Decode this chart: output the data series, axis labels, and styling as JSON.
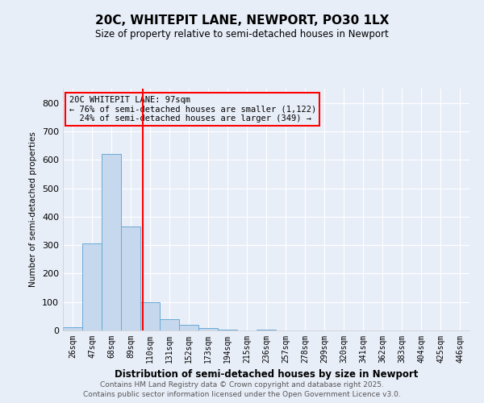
{
  "title": "20C, WHITEPIT LANE, NEWPORT, PO30 1LX",
  "subtitle": "Size of property relative to semi-detached houses in Newport",
  "xlabel": "Distribution of semi-detached houses by size in Newport",
  "ylabel": "Number of semi-detached properties",
  "categories": [
    "26sqm",
    "47sqm",
    "68sqm",
    "89sqm",
    "110sqm",
    "131sqm",
    "152sqm",
    "173sqm",
    "194sqm",
    "215sqm",
    "236sqm",
    "257sqm",
    "278sqm",
    "299sqm",
    "320sqm",
    "341sqm",
    "362sqm",
    "383sqm",
    "404sqm",
    "425sqm",
    "446sqm"
  ],
  "values": [
    10,
    305,
    620,
    365,
    100,
    40,
    20,
    8,
    2,
    1,
    2,
    0,
    1,
    0,
    0,
    0,
    0,
    0,
    0,
    0,
    0
  ],
  "bar_color": "#c5d8ee",
  "bar_edgecolor": "#6aaad4",
  "vline_x": 3.62,
  "vline_color": "red",
  "annotation_text": "20C WHITEPIT LANE: 97sqm\n← 76% of semi-detached houses are smaller (1,122)\n  24% of semi-detached houses are larger (349) →",
  "annotation_box_color": "red",
  "ylim": [
    0,
    850
  ],
  "yticks": [
    0,
    100,
    200,
    300,
    400,
    500,
    600,
    700,
    800
  ],
  "background_color": "#e8eef8",
  "grid_color": "#ffffff",
  "footer_line1": "Contains HM Land Registry data © Crown copyright and database right 2025.",
  "footer_line2": "Contains public sector information licensed under the Open Government Licence v3.0."
}
